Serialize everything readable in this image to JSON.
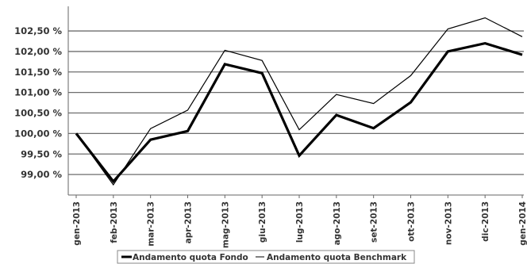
{
  "chart_data": {
    "type": "line",
    "title": "",
    "xlabel": "",
    "ylabel": "",
    "categories": [
      "gen-2013",
      "feb-2013",
      "mar-2013",
      "apr-2013",
      "mag-2013",
      "giu-2013",
      "lug-2013",
      "ago-2013",
      "set-2013",
      "ott-2013",
      "nov-2013",
      "dic-2013",
      "gen-2014"
    ],
    "ylim": [
      98.5,
      103.1
    ],
    "yticks": [
      99.0,
      99.5,
      100.0,
      100.5,
      101.0,
      101.5,
      102.0,
      102.5
    ],
    "ytick_labels": [
      "99,00 %",
      "99,50 %",
      "100,00 %",
      "100,50 %",
      "101,00 %",
      "101,50 %",
      "102,00 %",
      "102,50 %"
    ],
    "grid": true,
    "legend_position": "bottom",
    "series": [
      {
        "name": "Andamento quota Fondo",
        "color": "#000000",
        "values": [
          100.0,
          98.83,
          99.85,
          100.06,
          101.69,
          101.47,
          99.46,
          100.45,
          100.13,
          100.76,
          102.0,
          102.2,
          101.92
        ]
      },
      {
        "name": "Andamento quota Benchmark",
        "color": "#000000",
        "values": [
          100.0,
          98.75,
          100.12,
          100.57,
          102.03,
          101.78,
          100.09,
          100.95,
          100.73,
          101.41,
          102.55,
          102.82,
          102.36
        ]
      }
    ]
  }
}
